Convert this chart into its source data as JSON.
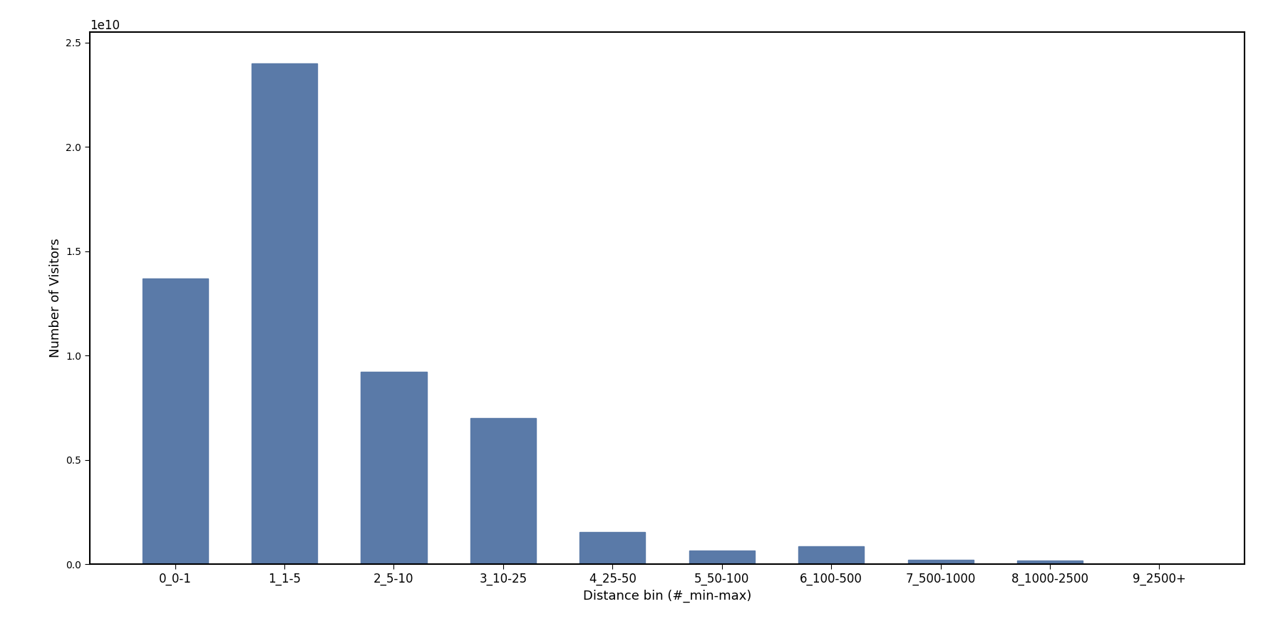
{
  "categories": [
    "0_0-1",
    "1_1-5",
    "2_5-10",
    "3_10-25",
    "4_25-50",
    "5_50-100",
    "6_100-500",
    "7_500-1000",
    "8_1000-2500",
    "9_2500+"
  ],
  "values": [
    13700000000.0,
    24000000000.0,
    9200000000.0,
    7000000000.0,
    1550000000.0,
    650000000.0,
    850000000.0,
    200000000.0,
    180000000.0,
    10000000.0
  ],
  "bar_color": "#5a7aa8",
  "xlabel": "Distance bin (#_min-max)",
  "ylabel": "Number of Visitors",
  "ylim": [
    0,
    25500000000.0
  ],
  "background_color": "#ffffff",
  "figsize": [
    18.0,
    9.0
  ],
  "dpi": 100,
  "bar_width": 0.6,
  "tick_fontsize": 12,
  "label_fontsize": 13
}
